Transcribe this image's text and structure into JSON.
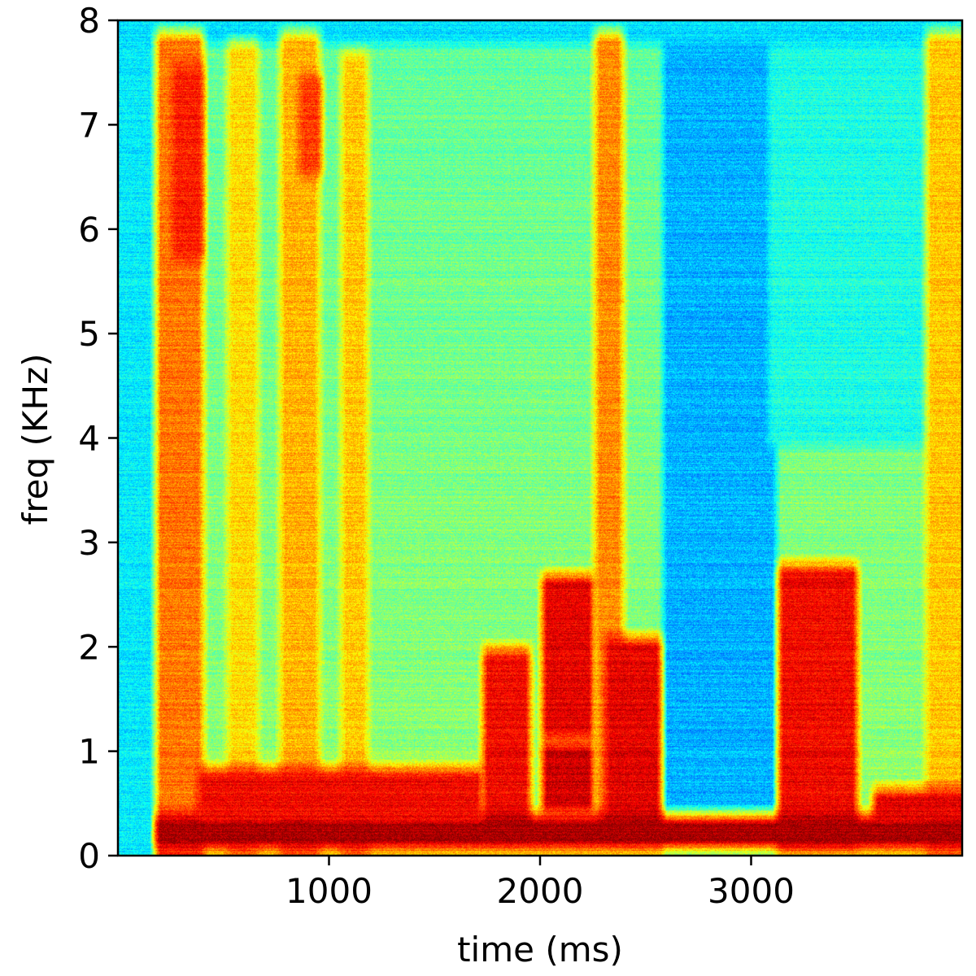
{
  "chart_data": {
    "type": "heatmap",
    "title": "",
    "xlabel": "time (ms)",
    "ylabel": "freq (KHz)",
    "xlim": [
      0,
      4000
    ],
    "ylim": [
      0,
      8
    ],
    "x_ticks": [
      1000,
      2000,
      3000
    ],
    "x_tick_labels": [
      "1000",
      "2000",
      "3000"
    ],
    "y_ticks": [
      0,
      1,
      2,
      3,
      4,
      5,
      6,
      7,
      8
    ],
    "y_tick_labels": [
      "0",
      "1",
      "2",
      "3",
      "4",
      "5",
      "6",
      "7",
      "8"
    ],
    "colormap": "jet",
    "grid": false,
    "colors": {
      "low": "#1fb4d8",
      "mid": "#b7f23a",
      "high": "#f08a1e",
      "max": "#b52a06"
    },
    "background_level": 0.47,
    "events": [
      {
        "t0": 200,
        "t1": 380,
        "f0": 0.0,
        "f1": 7.8,
        "level": 0.76
      },
      {
        "t0": 280,
        "t1": 380,
        "f0": 5.8,
        "f1": 7.5,
        "level": 0.85
      },
      {
        "t0": 540,
        "t1": 640,
        "f0": 0.0,
        "f1": 7.7,
        "level": 0.66
      },
      {
        "t0": 790,
        "t1": 930,
        "f0": 0.0,
        "f1": 7.8,
        "level": 0.7
      },
      {
        "t0": 880,
        "t1": 940,
        "f0": 6.6,
        "f1": 7.4,
        "level": 0.82
      },
      {
        "t0": 1080,
        "t1": 1160,
        "f0": 0.0,
        "f1": 7.6,
        "level": 0.68
      },
      {
        "t0": 1750,
        "t1": 1930,
        "f0": 0.3,
        "f1": 1.9,
        "level": 0.88
      },
      {
        "t0": 2030,
        "t1": 2230,
        "f0": 1.2,
        "f1": 2.6,
        "level": 0.9
      },
      {
        "t0": 2030,
        "t1": 2230,
        "f0": 0.5,
        "f1": 1.0,
        "level": 0.92
      },
      {
        "t0": 2280,
        "t1": 2370,
        "f0": 0.3,
        "f1": 7.8,
        "level": 0.74
      },
      {
        "t0": 2330,
        "t1": 2550,
        "f0": 0.3,
        "f1": 2.0,
        "level": 0.9
      },
      {
        "t0": 3150,
        "t1": 3480,
        "f0": 0.2,
        "f1": 2.7,
        "level": 0.88
      },
      {
        "t0": 3850,
        "t1": 3990,
        "f0": 0.0,
        "f1": 7.8,
        "level": 0.68
      },
      {
        "t0": 200,
        "t1": 3990,
        "f0": 0.15,
        "f1": 0.3,
        "level": 0.96
      },
      {
        "t0": 400,
        "t1": 1700,
        "f0": 0.3,
        "f1": 0.75,
        "level": 0.88
      },
      {
        "t0": 3600,
        "t1": 3990,
        "f0": 0.35,
        "f1": 0.55,
        "level": 0.9
      }
    ],
    "quiet_regions": [
      {
        "t0": 0,
        "t1": 210,
        "f0": 0.0,
        "f1": 8.0,
        "level": 0.36
      },
      {
        "t0": 2600,
        "t1": 3100,
        "f0": 0.0,
        "f1": 8.0,
        "level": 0.3
      },
      {
        "t0": 3100,
        "t1": 3990,
        "f0": 4.0,
        "f1": 8.0,
        "level": 0.4
      },
      {
        "t0": 0,
        "t1": 3990,
        "f0": 7.85,
        "f1": 8.0,
        "level": 0.34
      }
    ]
  }
}
